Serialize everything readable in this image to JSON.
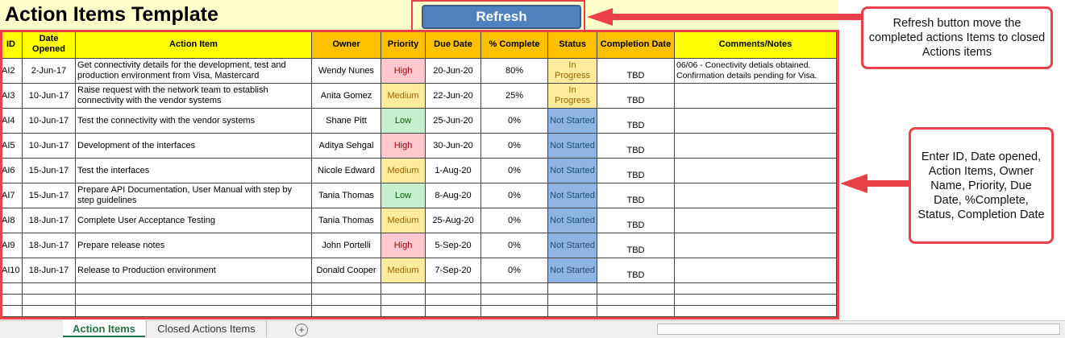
{
  "header": {
    "title": "Action Items Template"
  },
  "button": {
    "label": "Refresh"
  },
  "table": {
    "columns": [
      "ID",
      "Date Opened",
      "Action Item",
      "Owner",
      "Priority",
      "Due Date",
      "% Complete",
      "Status",
      "Completion Date",
      "Comments/Notes"
    ],
    "rows": [
      [
        "AI2",
        "2-Jun-17",
        "Get connectivity details for the development, test and production environment from Visa, Mastercard",
        "Wendy Nunes",
        "High",
        "20-Jun-20",
        "80%",
        "In Progress",
        "TBD",
        "06/06 - Conectivity detials obtained. Confirmation details pending  for Visa."
      ],
      [
        "AI3",
        "10-Jun-17",
        "Raise request with the network team to establish connectivity with the  vendor systems",
        "Anita Gomez",
        "Medium",
        "22-Jun-20",
        "25%",
        "In Progress",
        "TBD",
        ""
      ],
      [
        "AI4",
        "10-Jun-17",
        "Test the connectivity with the vendor systems",
        "Shane Pitt",
        "Low",
        "25-Jun-20",
        "0%",
        "Not Started",
        "TBD",
        ""
      ],
      [
        "AI5",
        "10-Jun-17",
        "Development of the interfaces",
        "Aditya Sehgal",
        "High",
        "30-Jun-20",
        "0%",
        "Not Started",
        "TBD",
        ""
      ],
      [
        "AI6",
        "15-Jun-17",
        "Test the interfaces",
        "Nicole Edward",
        "Medium",
        "1-Aug-20",
        "0%",
        "Not Started",
        "TBD",
        ""
      ],
      [
        "AI7",
        "15-Jun-17",
        "Prepare API Documentation, User Manual with step by step guidelines",
        "Tania Thomas",
        "Low",
        "8-Aug-20",
        "0%",
        "Not Started",
        "TBD",
        ""
      ],
      [
        "AI8",
        "18-Jun-17",
        "Complete User Acceptance Testing",
        "Tania Thomas",
        "Medium",
        "25-Aug-20",
        "0%",
        "Not Started",
        "TBD",
        ""
      ],
      [
        "AI9",
        "18-Jun-17",
        "Prepare release notes",
        "John Portelli",
        "High",
        "5-Sep-20",
        "0%",
        "Not Started",
        "TBD",
        ""
      ],
      [
        "AI10",
        "18-Jun-17",
        "Release to Production environment",
        "Donald Cooper",
        "Medium",
        "7-Sep-20",
        "0%",
        "Not Started",
        "TBD",
        ""
      ]
    ]
  },
  "annotations": [
    "Refresh button move the completed actions Items to closed Actions items",
    "Enter ID, Date opened, Action Items, Owner Name, Priority, Due Date, %Complete, Status, Completion Date"
  ],
  "tabs": [
    "Action Items",
    "Closed Actions Items"
  ]
}
